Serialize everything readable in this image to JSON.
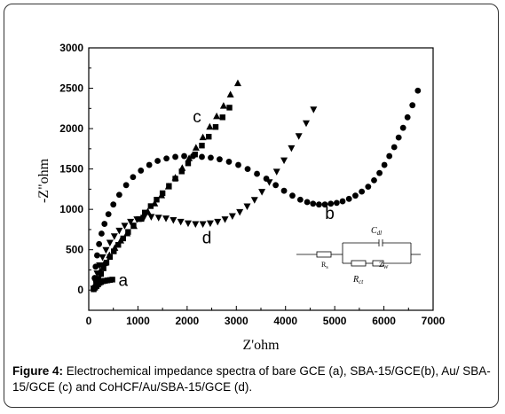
{
  "caption": {
    "label": "Figure 4:",
    "text": " Electrochemical impedance spectra of bare GCE (a), SBA-15/GCE(b), Au/ SBA-15/GCE (c) and CoHCF/Au/SBA-15/GCE (d)."
  },
  "chart_data": {
    "type": "scatter",
    "xlabel": "Z'ohm",
    "ylabel": "-Z\"ohm",
    "xlim": [
      0,
      7000
    ],
    "ylim": [
      -250,
      3000
    ],
    "xticks": [
      0,
      1000,
      2000,
      3000,
      4000,
      5000,
      6000,
      7000
    ],
    "yticks": [
      0,
      500,
      1000,
      1500,
      2000,
      2500,
      3000
    ],
    "grid": false,
    "series": [
      {
        "name": "a",
        "marker": "square",
        "x": [
          100,
          130,
          160,
          190,
          220,
          250,
          290,
          330,
          380,
          430,
          480
        ],
        "y": [
          10,
          30,
          50,
          70,
          90,
          100,
          110,
          115,
          120,
          125,
          130
        ]
      },
      {
        "name": "b",
        "marker": "circle",
        "x": [
          100,
          120,
          140,
          170,
          210,
          260,
          320,
          400,
          500,
          620,
          760,
          900,
          1060,
          1230,
          1400,
          1580,
          1760,
          1940,
          2120,
          2300,
          2480,
          2660,
          2850,
          3040,
          3230,
          3420,
          3610,
          3800,
          3970,
          4140,
          4300,
          4440,
          4560,
          4680,
          4800,
          4920,
          5040,
          5160,
          5290,
          5420,
          5550,
          5680,
          5800,
          5910,
          6010,
          6110,
          6210,
          6300,
          6390,
          6480,
          6580,
          6690
        ],
        "y": [
          20,
          150,
          290,
          430,
          570,
          700,
          820,
          940,
          1060,
          1180,
          1300,
          1400,
          1480,
          1550,
          1600,
          1630,
          1650,
          1660,
          1660,
          1650,
          1640,
          1620,
          1590,
          1550,
          1500,
          1440,
          1380,
          1300,
          1230,
          1170,
          1120,
          1090,
          1070,
          1060,
          1060,
          1070,
          1080,
          1100,
          1130,
          1170,
          1220,
          1280,
          1360,
          1450,
          1550,
          1660,
          1770,
          1890,
          2010,
          2140,
          2290,
          2470
        ]
      },
      {
        "name": "c",
        "marker": "square",
        "x": [
          100,
          150,
          200,
          250,
          300,
          360,
          430,
          510,
          600,
          700,
          800,
          910,
          1020,
          1140,
          1260,
          1380,
          1500,
          1630,
          1760,
          1890,
          2020,
          2160,
          2300,
          2440,
          2580,
          2720,
          2860
        ],
        "y": [
          20,
          80,
          140,
          200,
          270,
          340,
          410,
          480,
          560,
          640,
          720,
          800,
          880,
          960,
          1040,
          1120,
          1200,
          1290,
          1380,
          1470,
          1570,
          1680,
          1790,
          1900,
          2020,
          2140,
          2260
        ]
      },
      {
        "name": "c-tri",
        "marker": "triangle-up",
        "x": [
          100,
          160,
          230,
          320,
          420,
          530,
          650,
          780,
          920,
          1060,
          1200,
          1340,
          1480,
          1620,
          1760,
          1900,
          2040,
          2180,
          2320,
          2460,
          2600,
          2740,
          2880,
          3030
        ],
        "y": [
          30,
          130,
          230,
          330,
          430,
          520,
          610,
          700,
          790,
          880,
          970,
          1070,
          1170,
          1280,
          1390,
          1510,
          1630,
          1760,
          1890,
          2020,
          2150,
          2280,
          2420,
          2560
        ]
      },
      {
        "name": "d",
        "marker": "triangle-down",
        "x": [
          100,
          130,
          170,
          220,
          280,
          350,
          430,
          520,
          620,
          730,
          850,
          980,
          1120,
          1270,
          1420,
          1570,
          1720,
          1870,
          2020,
          2170,
          2320,
          2470,
          2620,
          2770,
          2920,
          3070,
          3220,
          3370,
          3520,
          3670,
          3820,
          3970,
          4120,
          4270,
          4420,
          4570
        ],
        "y": [
          20,
          110,
          210,
          310,
          410,
          500,
          590,
          670,
          740,
          800,
          850,
          880,
          900,
          910,
          900,
          890,
          870,
          850,
          830,
          820,
          820,
          830,
          850,
          880,
          920,
          970,
          1040,
          1120,
          1220,
          1340,
          1470,
          1610,
          1760,
          1910,
          2070,
          2240
        ]
      }
    ],
    "annotations": [
      {
        "text": "a",
        "x": 700,
        "y": 50
      },
      {
        "text": "b",
        "x": 4900,
        "y": 880
      },
      {
        "text": "c",
        "x": 2200,
        "y": 2080
      },
      {
        "text": "d",
        "x": 2400,
        "y": 580
      }
    ],
    "inset": {
      "labels": {
        "cdl": "C",
        "cdl_sub": "dl",
        "rs": "R",
        "rs_sub": "s",
        "rct": "R",
        "rct_sub": "ct",
        "zw": "Z",
        "zw_sub": "W"
      }
    }
  }
}
